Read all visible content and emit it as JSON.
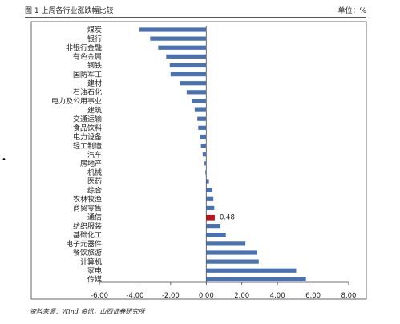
{
  "header": {
    "title": "图 1 上周各行业涨跌幅比较",
    "unit": "单位：%"
  },
  "bullet": "•",
  "source": "资料来源：Wind 资讯，山西证券研究所",
  "chart_data": {
    "type": "bar",
    "orientation": "horizontal",
    "categories": [
      "煤炭",
      "银行",
      "非银行金融",
      "有色金属",
      "钢铁",
      "国防军工",
      "建材",
      "石油石化",
      "电力及公用事业",
      "建筑",
      "交通运输",
      "食品饮料",
      "电力设备",
      "轻工制造",
      "汽车",
      "房地产",
      "机械",
      "医药",
      "综合",
      "农林牧渔",
      "商贸零售",
      "通信",
      "纺织服装",
      "基础化工",
      "电子元器件",
      "餐饮旅游",
      "计算机",
      "家电",
      "传媒"
    ],
    "values": [
      -3.75,
      -3.15,
      -2.7,
      -2.25,
      -2.05,
      -2.0,
      -1.5,
      -1.1,
      -0.8,
      -0.65,
      -0.5,
      -0.45,
      -0.35,
      -0.3,
      -0.2,
      -0.1,
      -0.05,
      0.15,
      0.35,
      0.4,
      0.45,
      0.48,
      0.8,
      1.1,
      2.2,
      2.85,
      2.95,
      5.05,
      5.6
    ],
    "highlight": {
      "category": "通信",
      "label": "0.48",
      "color": "#c0141c"
    },
    "bar_color": "#4a72b0",
    "xlim": [
      -6.0,
      8.0
    ],
    "xticks": [
      "-6.00",
      "-4.00",
      "-2.00",
      "0.00",
      "2.00",
      "4.00",
      "6.00",
      "8.00"
    ],
    "xtick_values": [
      -6,
      -4,
      -2,
      0,
      2,
      4,
      6,
      8
    ],
    "grid": false,
    "legend": "none"
  }
}
